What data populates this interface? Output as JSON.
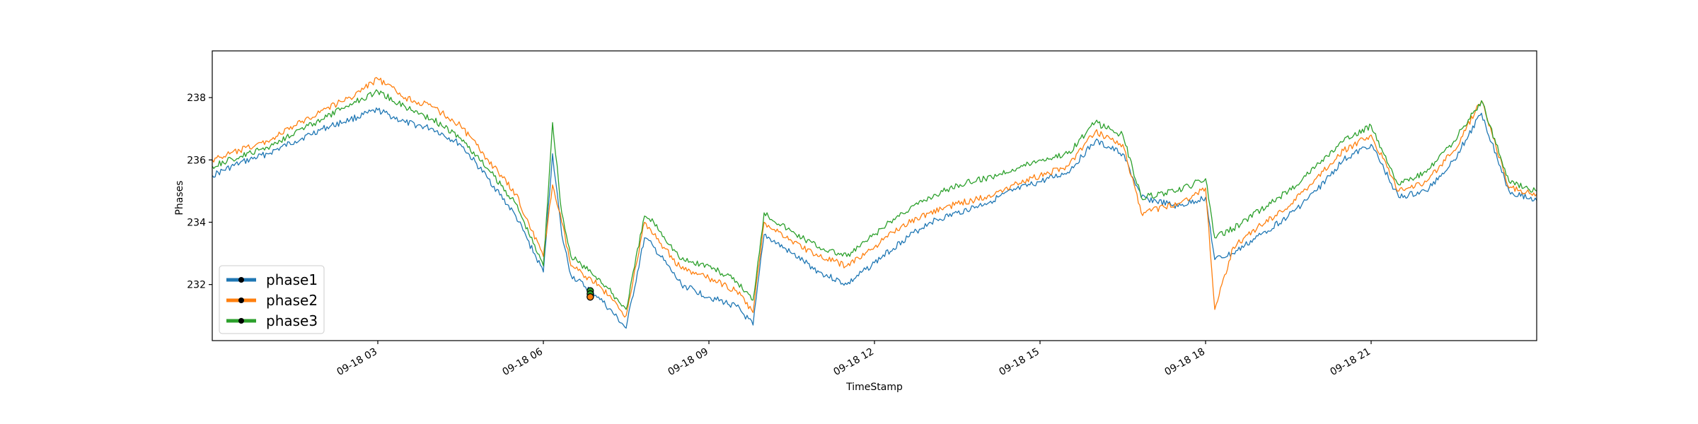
{
  "chart_data": {
    "type": "line",
    "title": "",
    "xlabel": "TimeStamp",
    "ylabel": "Phases",
    "xlim": [
      "2018-09-18 00:00",
      "2018-09-19 00:00"
    ],
    "ylim": [
      230.2,
      239.5
    ],
    "grid": false,
    "legend_position": "lower-left",
    "x_ticks": [
      {
        "t": "2018-09-18 03:00",
        "label": "09-18 03"
      },
      {
        "t": "2018-09-18 06:00",
        "label": "09-18 06"
      },
      {
        "t": "2018-09-18 09:00",
        "label": "09-18 09"
      },
      {
        "t": "2018-09-18 12:00",
        "label": "09-18 12"
      },
      {
        "t": "2018-09-18 15:00",
        "label": "09-18 15"
      },
      {
        "t": "2018-09-18 18:00",
        "label": "09-18 18"
      },
      {
        "t": "2018-09-18 21:00",
        "label": "09-18 21"
      }
    ],
    "y_ticks": [
      232,
      234,
      236,
      238
    ],
    "x": [
      "2018-09-18 00:00",
      "2018-09-18 00:30",
      "2018-09-18 01:00",
      "2018-09-18 01:30",
      "2018-09-18 02:00",
      "2018-09-18 02:30",
      "2018-09-18 03:00",
      "2018-09-18 03:30",
      "2018-09-18 04:00",
      "2018-09-18 04:30",
      "2018-09-18 05:00",
      "2018-09-18 05:30",
      "2018-09-18 06:00",
      "2018-09-18 06:10",
      "2018-09-18 06:20",
      "2018-09-18 06:30",
      "2018-09-18 07:00",
      "2018-09-18 07:30",
      "2018-09-18 07:50",
      "2018-09-18 08:00",
      "2018-09-18 08:30",
      "2018-09-18 09:00",
      "2018-09-18 09:30",
      "2018-09-18 09:48",
      "2018-09-18 10:00",
      "2018-09-18 10:30",
      "2018-09-18 11:00",
      "2018-09-18 11:30",
      "2018-09-18 12:00",
      "2018-09-18 12:30",
      "2018-09-18 13:00",
      "2018-09-18 13:30",
      "2018-09-18 14:00",
      "2018-09-18 14:30",
      "2018-09-18 15:00",
      "2018-09-18 15:30",
      "2018-09-18 16:00",
      "2018-09-18 16:30",
      "2018-09-18 16:50",
      "2018-09-18 17:30",
      "2018-09-18 18:00",
      "2018-09-18 18:10",
      "2018-09-18 18:30",
      "2018-09-18 19:00",
      "2018-09-18 19:30",
      "2018-09-18 20:00",
      "2018-09-18 20:30",
      "2018-09-18 21:00",
      "2018-09-18 21:30",
      "2018-09-18 22:00",
      "2018-09-18 22:30",
      "2018-09-18 23:00",
      "2018-09-18 23:30",
      "2018-09-19 00:00"
    ],
    "series": [
      {
        "name": "phase1",
        "color": "#1f77b4",
        "values": [
          235.5,
          235.9,
          236.2,
          236.6,
          237.0,
          237.3,
          237.6,
          237.2,
          237.0,
          236.5,
          235.4,
          234.2,
          232.4,
          236.2,
          233.6,
          232.3,
          231.6,
          230.6,
          233.5,
          233.2,
          232.0,
          231.6,
          231.3,
          230.7,
          233.6,
          233.0,
          232.4,
          232.0,
          232.7,
          233.4,
          234.0,
          234.3,
          234.6,
          235.0,
          235.3,
          235.6,
          236.6,
          236.2,
          234.8,
          234.5,
          234.8,
          232.8,
          233.0,
          233.6,
          234.2,
          235.0,
          236.0,
          236.5,
          234.8,
          235.0,
          236.0,
          237.5,
          235.0,
          234.7
        ]
      },
      {
        "name": "phase2",
        "color": "#ff7f0e",
        "values": [
          236.0,
          236.3,
          236.6,
          237.1,
          237.6,
          238.0,
          238.6,
          238.0,
          237.7,
          237.1,
          236.0,
          234.9,
          232.9,
          235.2,
          234.0,
          232.6,
          232.0,
          231.0,
          234.0,
          233.6,
          232.5,
          232.2,
          231.8,
          231.1,
          234.0,
          233.4,
          232.9,
          232.6,
          233.2,
          233.9,
          234.3,
          234.6,
          234.8,
          235.2,
          235.5,
          235.8,
          236.9,
          236.5,
          234.3,
          234.6,
          235.1,
          231.2,
          233.2,
          233.9,
          234.5,
          235.4,
          236.3,
          236.8,
          235.0,
          235.3,
          236.3,
          237.9,
          235.1,
          234.9
        ]
      },
      {
        "name": "phase3",
        "color": "#2ca02c",
        "values": [
          235.8,
          236.1,
          236.4,
          236.9,
          237.3,
          237.8,
          238.2,
          237.7,
          237.3,
          236.7,
          235.7,
          234.6,
          232.6,
          237.2,
          234.3,
          232.9,
          232.2,
          231.2,
          234.2,
          234.0,
          232.8,
          232.6,
          232.1,
          231.5,
          234.3,
          233.7,
          233.2,
          232.9,
          233.6,
          234.3,
          234.8,
          235.2,
          235.4,
          235.7,
          236.0,
          236.2,
          237.2,
          236.8,
          234.8,
          235.0,
          235.4,
          233.5,
          233.8,
          234.4,
          235.0,
          235.8,
          236.6,
          237.1,
          235.2,
          235.6,
          236.6,
          237.9,
          235.3,
          235.0
        ]
      }
    ],
    "markers": [
      {
        "series": "phase3",
        "t": "2018-09-18 06:51",
        "values": [
          231.8,
          231.7,
          231.6
        ]
      },
      {
        "series": "phase2",
        "t": "2018-09-18 06:51",
        "values": [
          231.6
        ]
      }
    ]
  }
}
